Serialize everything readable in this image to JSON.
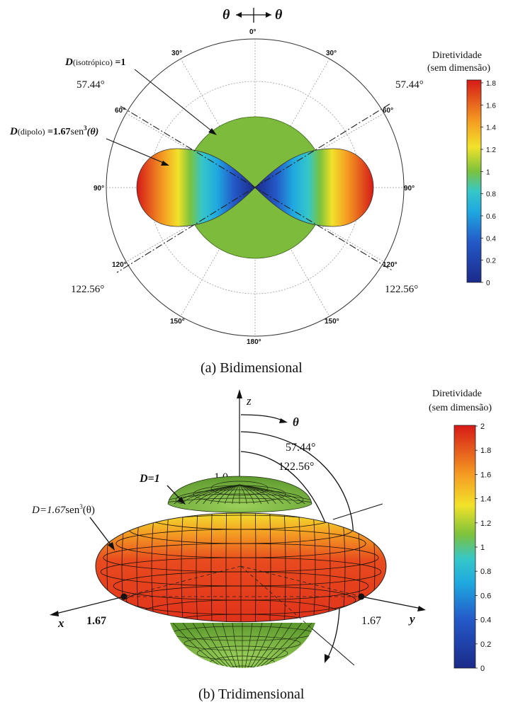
{
  "top": {
    "arrow_left": "θ",
    "arrow_right": "θ",
    "angles": {
      "a0": "0°",
      "a30l": "30°",
      "a30r": "30°",
      "a60l": "60°",
      "a60r": "60°",
      "a90l": "90°",
      "a90r": "90°",
      "a120l": "120°",
      "a120r": "120°",
      "a150l": "150°",
      "a150r": "150°",
      "a180": "180°"
    },
    "axis_tl": "57.44°",
    "axis_tr": "57.44°",
    "axis_bl": "122.56°",
    "axis_br": "122.56°",
    "iso_label": {
      "D": "D",
      "sub": "(isotrópico)",
      "eq": " =1"
    },
    "dip_label": {
      "D": "D",
      "sub": "(dipolo)",
      "eq": " =1.67",
      "fn": "sen",
      "exp": "3",
      "arg": "(θ)"
    },
    "colorbar": {
      "title1": "Diretividade",
      "title2": "(sem dimensão)",
      "ticks": [
        "1.8",
        "1.6",
        "1.4",
        "1.2",
        "1",
        "0.8",
        "0.6",
        "0.4",
        "0.2",
        "0"
      ]
    },
    "caption": "(a) Bidimensional"
  },
  "bottom": {
    "z": "z",
    "theta": "θ",
    "a1": "57.44°",
    "a2": "122.56°",
    "val_top": "1.0",
    "d_iso": "D=1",
    "d_dip": {
      "main": "D=1.67",
      "fn": "sen",
      "exp": "3",
      "arg": "(θ)"
    },
    "x": "x",
    "y": "y",
    "vx": "1.67",
    "vy": "1.67",
    "colorbar": {
      "title1": "Diretividade",
      "title2": "(sem dimensão)",
      "ticks": [
        "2",
        "1.8",
        "1.6",
        "1.4",
        "1.2",
        "1",
        "0.8",
        "0.6",
        "0.4",
        "0.2",
        "0"
      ]
    },
    "caption": "(b) Tridimensional"
  },
  "colors": {
    "green": "#7dbb3c",
    "red": "#d92a1c",
    "orange": "#ef6a1a",
    "yellow": "#f4d82a",
    "blue": "#1e3a9c"
  }
}
